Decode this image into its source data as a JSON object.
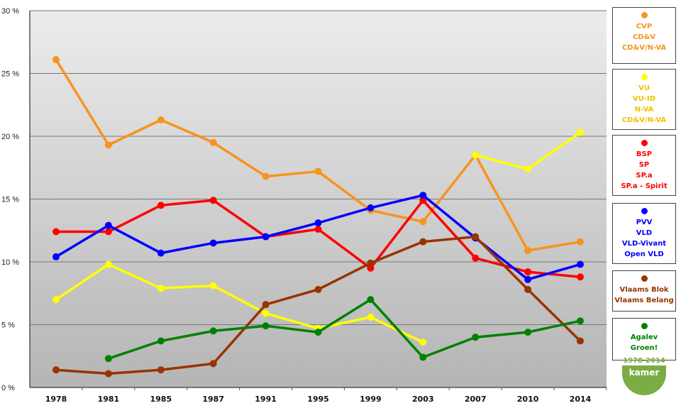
{
  "chart_data": {
    "type": "line",
    "categories": [
      "1978",
      "1981",
      "1985",
      "1987",
      "1991",
      "1995",
      "1999",
      "2003",
      "2007",
      "2010",
      "2014"
    ],
    "ylim": [
      0,
      30
    ],
    "yticks": [
      0,
      5,
      10,
      15,
      20,
      25,
      30
    ],
    "ytick_labels": [
      "0 %",
      "5 %",
      "10 %",
      "15 %",
      "20 %",
      "25 %",
      "30 %"
    ],
    "grid": true,
    "legend_placement": "right",
    "series": [
      {
        "name": "CVP / CD&V / CD&V/N-VA",
        "labels": [
          "CVP",
          "CD&V",
          "CD&V/N-VA"
        ],
        "color": "#f7941d",
        "values": [
          26.1,
          19.3,
          21.3,
          19.5,
          16.8,
          17.2,
          14.1,
          13.2,
          18.5,
          10.9,
          11.6
        ]
      },
      {
        "name": "VU / VU-ID / N-VA / CD&V/N-VA",
        "labels": [
          "VU",
          "VU-ID",
          "N-VA",
          "CD&V/N-VA"
        ],
        "color": "#ffff00",
        "text_color": "#f2c200",
        "values": [
          7.0,
          9.8,
          7.9,
          8.1,
          5.9,
          4.7,
          5.6,
          3.6,
          18.5,
          17.4,
          20.3
        ],
        "gap_between": [
          "2003",
          "2007"
        ]
      },
      {
        "name": "BSP / SP / SP.a / SP.a - Spirit",
        "labels": [
          "BSP",
          "SP",
          "SP.a",
          "SP.a - Spirit"
        ],
        "color": "#ff0000",
        "values": [
          12.4,
          12.4,
          14.5,
          14.9,
          12.0,
          12.6,
          9.5,
          14.9,
          10.3,
          9.2,
          8.8
        ]
      },
      {
        "name": "PVV / VLD / VLD-Vivant / Open VLD",
        "labels": [
          "PVV",
          "VLD",
          "VLD-Vivant",
          "Open VLD"
        ],
        "color": "#0000ff",
        "values": [
          10.4,
          12.9,
          10.7,
          11.5,
          12.0,
          13.1,
          14.3,
          15.3,
          11.9,
          8.6,
          9.8
        ]
      },
      {
        "name": "Vlaams Blok / Vlaams Belang",
        "labels": [
          "Vlaams Blok",
          "Vlaams Belang"
        ],
        "color": "#993300",
        "values": [
          1.4,
          1.1,
          1.4,
          1.9,
          6.6,
          7.8,
          9.9,
          11.6,
          12.0,
          7.8,
          3.7
        ]
      },
      {
        "name": "Agalev / Groen!",
        "labels": [
          "Agalev",
          "Groen!"
        ],
        "color": "#008000",
        "values": [
          null,
          2.3,
          3.7,
          4.5,
          4.9,
          4.4,
          7.0,
          2.4,
          4.0,
          4.4,
          5.3
        ]
      }
    ]
  },
  "badge": {
    "years": "1978-2014",
    "label": "kamer",
    "color": "#7cad45"
  }
}
